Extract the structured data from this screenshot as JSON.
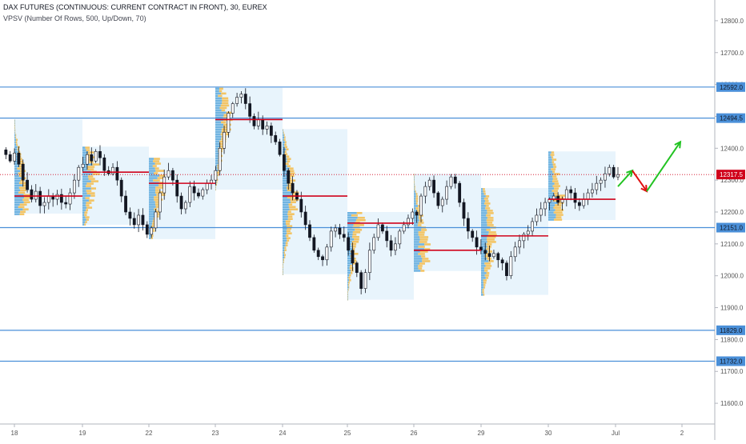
{
  "header": {
    "title": "DAX FUTURES (CONTINUOUS: CURRENT CONTRACT IN FRONT), 30, EUREX",
    "indicator": "VPSV (Number Of Rows, 500, Up/Down, 70)"
  },
  "colors": {
    "bull_candle": "#131722",
    "level_line": "#4a8fd8",
    "level_label_bg": "#4a8fd8",
    "poc_line": "#d0021b",
    "last_price_bg": "#d0021b",
    "profile_bg": "#e8f4fc",
    "profile_up": "#4a9fd8",
    "profile_down": "#f5b83d",
    "arrow_green": "#22c322",
    "arrow_red": "#e01010",
    "axis_text": "#555555"
  },
  "chart_data": {
    "type": "candlestick",
    "y_axis": {
      "range": [
        11535,
        12865
      ],
      "ticks": [
        12800.0,
        12700.0,
        12600.0,
        12500.0,
        12400.0,
        12300.0,
        12200.0,
        12100.0,
        12000.0,
        11900.0,
        11800.0,
        11700.0,
        11600.0
      ],
      "tick_labels": [
        "12800.0",
        "12700.0",
        "12600.0",
        "12500.0",
        "12400.0",
        "12300.0",
        "12200.0",
        "12100.0",
        "12000.0",
        "11900.0",
        "11800.0",
        "11700.0",
        "11600.0"
      ]
    },
    "x_axis": {
      "labels": [
        "18",
        "19",
        "22",
        "23",
        "24",
        "25",
        "26",
        "29",
        "30",
        "Jul",
        "2"
      ]
    },
    "horizontal_levels": [
      {
        "value": 12592.0,
        "label": "12592.0"
      },
      {
        "value": 12494.5,
        "label": "12494.5"
      },
      {
        "value": 12151.0,
        "label": "12151.0"
      },
      {
        "value": 11829.0,
        "label": "11829.0"
      },
      {
        "value": 11732.0,
        "label": "11732.0"
      }
    ],
    "last_price": {
      "value": 12317.5,
      "label": "12317.5"
    },
    "session_profiles": [
      {
        "session": "18",
        "high": 12490,
        "low": 12195,
        "poc": 12250
      },
      {
        "session": "19",
        "high": 12405,
        "low": 12160,
        "poc": 12325
      },
      {
        "session": "22",
        "high": 12370,
        "low": 12115,
        "poc": 12290
      },
      {
        "session": "23",
        "high": 12590,
        "low": 12270,
        "poc": 12490
      },
      {
        "session": "24",
        "high": 12460,
        "low": 12005,
        "poc": 12250
      },
      {
        "session": "25",
        "high": 12200,
        "low": 11925,
        "poc": 12165
      },
      {
        "session": "26",
        "high": 12320,
        "low": 12015,
        "poc": 12080
      },
      {
        "session": "29",
        "high": 12275,
        "low": 11940,
        "poc": 12125
      },
      {
        "session": "30",
        "high": 12390,
        "low": 12175,
        "poc": 12240
      }
    ],
    "candles_close_path": [
      12395,
      12380,
      12360,
      12385,
      12350,
      12300,
      12270,
      12240,
      12265,
      12220,
      12230,
      12250,
      12240,
      12255,
      12230,
      12225,
      12260,
      12300,
      12340,
      12350,
      12380,
      12360,
      12390,
      12370,
      12330,
      12320,
      12340,
      12300,
      12250,
      12200,
      12180,
      12160,
      12190,
      12160,
      12130,
      12150,
      12200,
      12260,
      12310,
      12330,
      12300,
      12250,
      12210,
      12230,
      12280,
      12260,
      12250,
      12270,
      12290,
      12300,
      12330,
      12400,
      12450,
      12510,
      12540,
      12560,
      12570,
      12540,
      12500,
      12470,
      12490,
      12460,
      12470,
      12440,
      12420,
      12380,
      12330,
      12290,
      12260,
      12240,
      12200,
      12160,
      12120,
      12080,
      12060,
      12050,
      12090,
      12140,
      12150,
      12130,
      12120,
      12080,
      12040,
      12010,
      11960,
      12010,
      12080,
      12120,
      12160,
      12140,
      12110,
      12080,
      12100,
      12140,
      12160,
      12180,
      12200,
      12190,
      12250,
      12280,
      12300,
      12260,
      12220,
      12240,
      12280,
      12310,
      12290,
      12230,
      12180,
      12140,
      12120,
      12090,
      12080,
      12070,
      12060,
      12070,
      12050,
      12040,
      12000,
      12060,
      12090,
      12110,
      12130,
      12140,
      12170,
      12190,
      12210,
      12230,
      12240,
      12250,
      12230,
      12240,
      12270,
      12260,
      12230,
      12220,
      12240,
      12260,
      12270,
      12290,
      12300,
      12320,
      12340,
      12310,
      12317.5
    ],
    "projection_arrows": [
      {
        "color": "green",
        "from": [
          12280,
          0
        ],
        "to": [
          12330,
          1
        ]
      },
      {
        "color": "red",
        "from": [
          12330,
          1
        ],
        "to": [
          12265,
          2
        ]
      },
      {
        "color": "green",
        "from": [
          12265,
          2
        ],
        "to": [
          12420,
          3
        ]
      }
    ]
  }
}
